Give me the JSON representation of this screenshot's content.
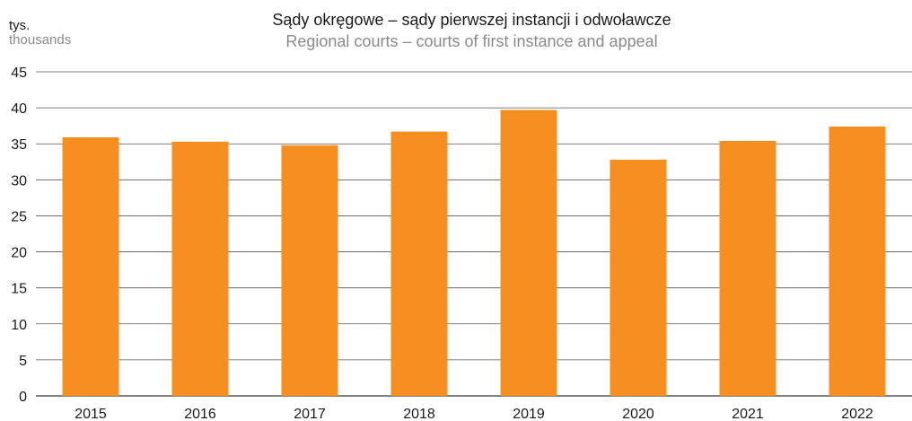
{
  "chart_data": {
    "type": "bar",
    "title": "Sądy okręgowe – sądy pierwszej instancji i odwoławcze",
    "subtitle": "Regional courts – courts of first instance and appeal",
    "ylabel": "tys.",
    "ylabel_en": "thousands",
    "xlabel": "",
    "categories": [
      "2015",
      "2016",
      "2017",
      "2018",
      "2019",
      "2020",
      "2021",
      "2022"
    ],
    "values": [
      35.9,
      35.3,
      34.8,
      36.7,
      39.7,
      32.8,
      35.4,
      37.4
    ],
    "ylim": [
      0,
      45
    ],
    "yticks": [
      0,
      5,
      10,
      15,
      20,
      25,
      30,
      35,
      40,
      45
    ],
    "grid": true,
    "legend": "none",
    "bar_color": "#f68e20"
  }
}
